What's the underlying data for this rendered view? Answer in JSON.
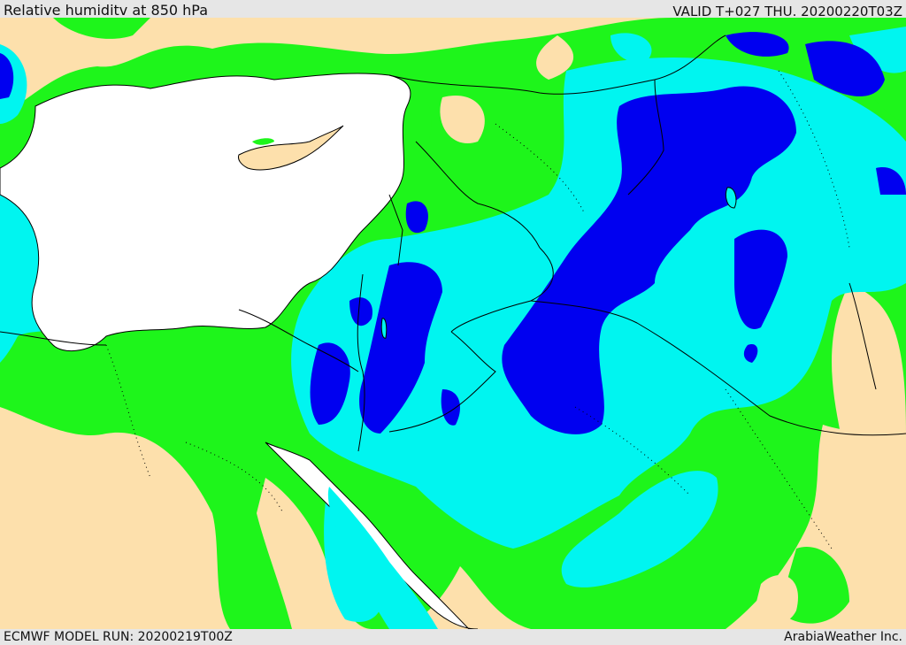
{
  "header": {
    "title": "Relative humiditv at 850 hPa",
    "valid": "VALID T+027 THU. 20200220T03Z"
  },
  "footer": {
    "model_run": "ECMWF MODEL RUN: 20200219T00Z",
    "credit": "ArabiaWeather Inc."
  },
  "colors": {
    "land": "#fde0ac",
    "water": "#ffffff",
    "green": "#1ef51b",
    "cyan": "#00f5f0",
    "blue": "#0000f0",
    "boundary": "#000000"
  }
}
